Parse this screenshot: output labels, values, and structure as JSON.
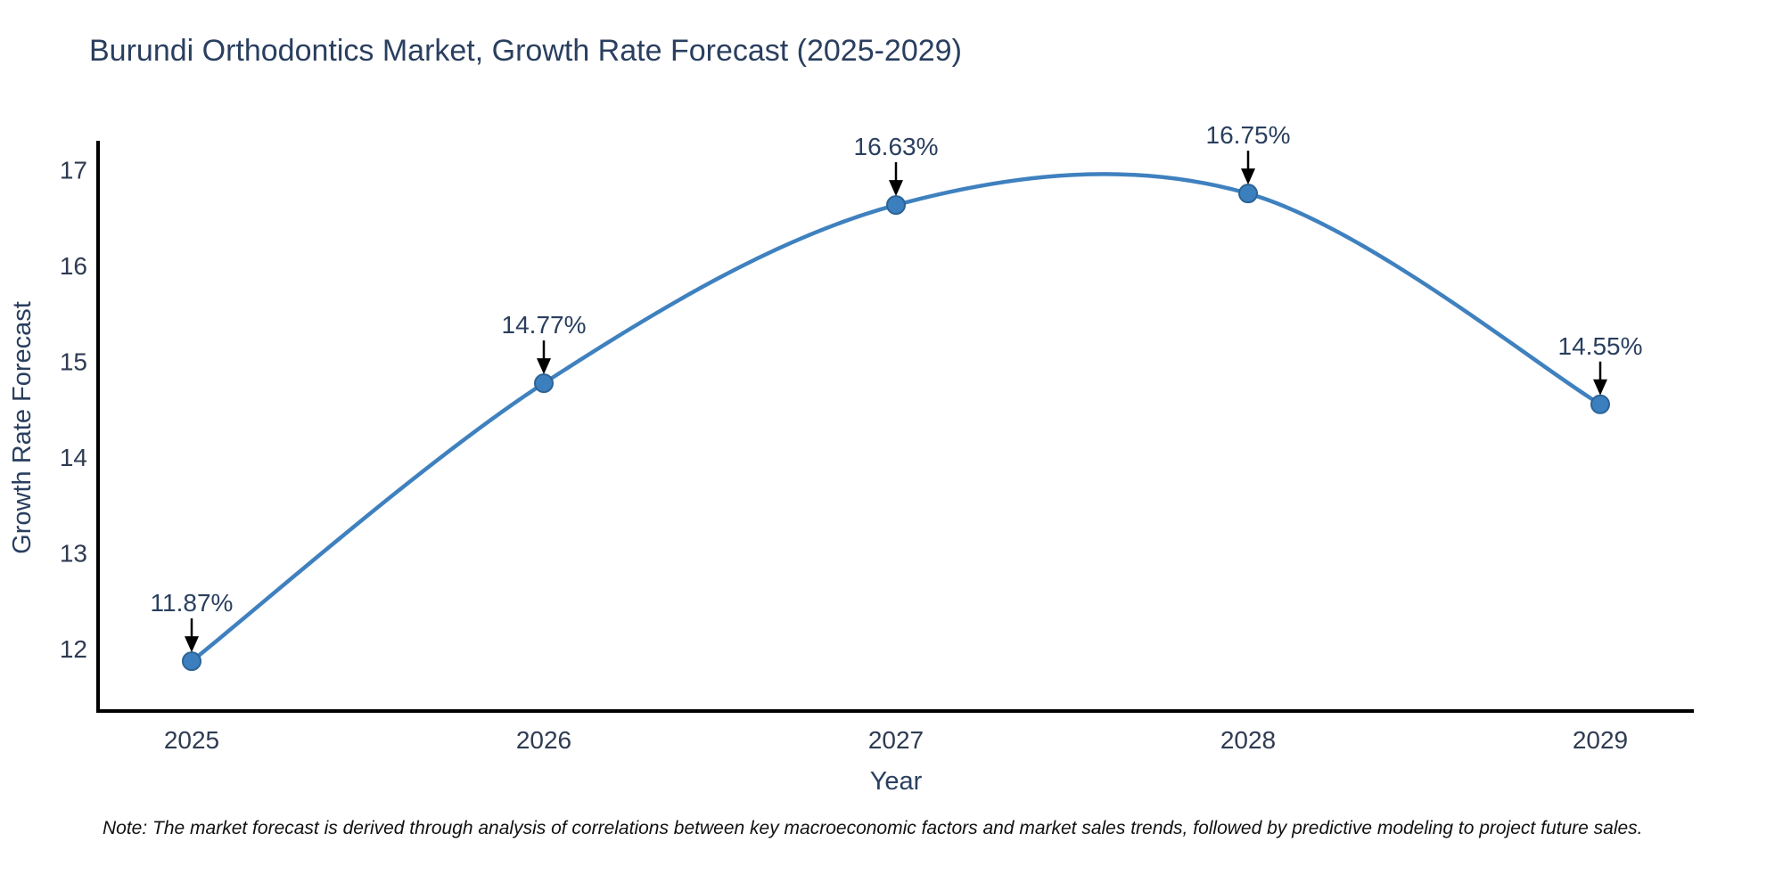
{
  "note": "Note: The market forecast is derived through analysis of correlations between key macroeconomic factors and market sales trends, followed by predictive modeling to project future sales.",
  "chart_data": {
    "type": "line",
    "line_shape": "spline",
    "title": "Burundi Orthodontics Market, Growth Rate Forecast (2025-2029)",
    "xlabel": "Year",
    "ylabel": "Growth Rate Forecast",
    "categories": [
      "2025",
      "2026",
      "2027",
      "2028",
      "2029"
    ],
    "values": [
      11.87,
      14.77,
      16.63,
      16.75,
      14.55
    ],
    "point_labels": [
      "11.87%",
      "14.77%",
      "16.63%",
      "16.75%",
      "14.55%"
    ],
    "yticks": [
      12,
      13,
      14,
      15,
      16,
      17
    ],
    "ylim": [
      11.35,
      17.3
    ],
    "grid": false,
    "legend": "none",
    "colors": {
      "line": "#3f81bf",
      "marker_fill": "#3c7fbe",
      "marker_edge": "#2c6496",
      "annotation_arrow": "#000000",
      "axis_line": "#000000",
      "text": "#2a3f5f"
    }
  }
}
